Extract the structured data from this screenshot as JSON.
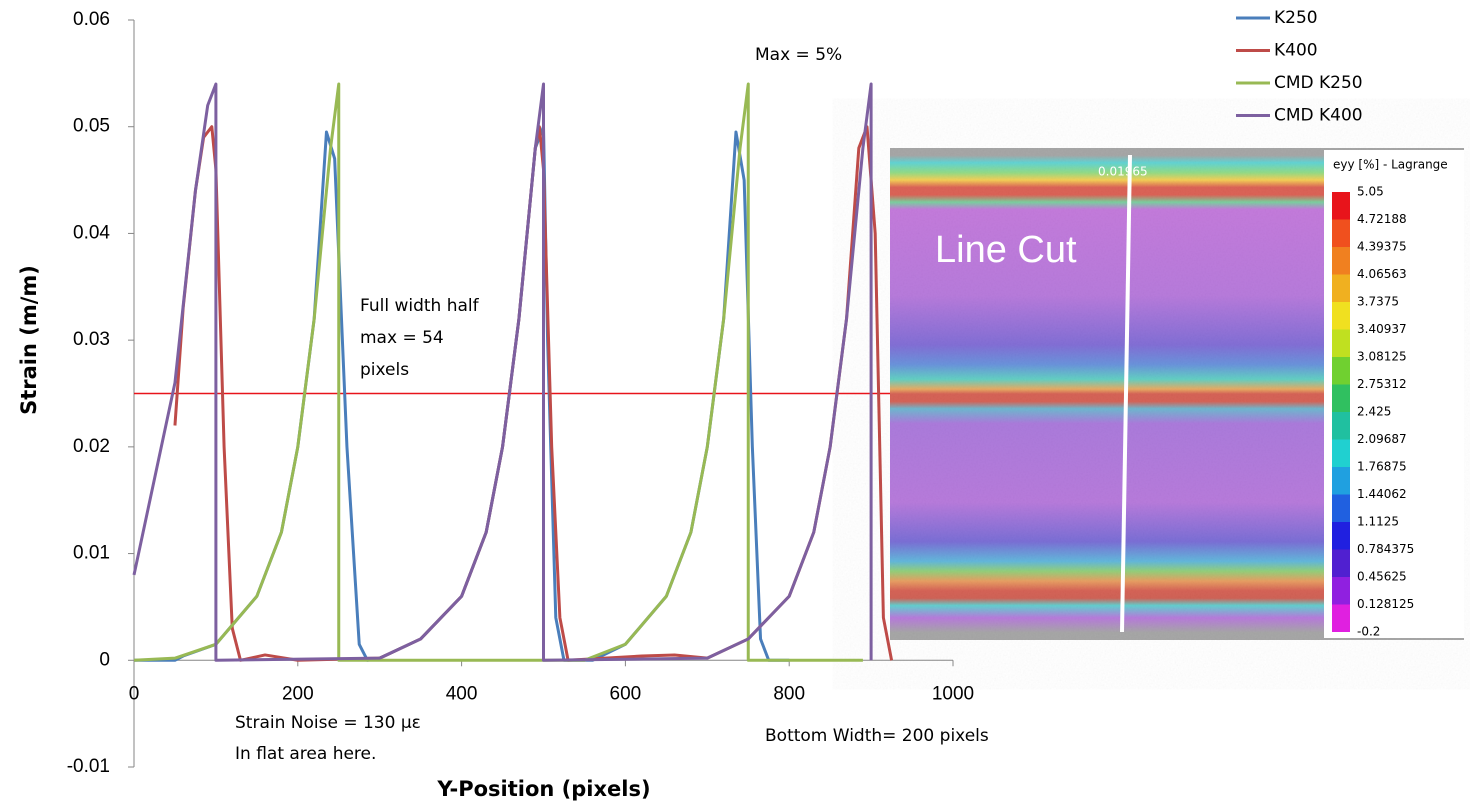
{
  "chart_data": {
    "type": "line",
    "x_label": "Y-Position (pixels)",
    "y_label": "Strain (m/m)",
    "xlim": [
      0,
      1000
    ],
    "xticks": [
      0,
      200,
      400,
      600,
      800,
      1000
    ],
    "ylim": [
      -0.01,
      0.06
    ],
    "yticks": [
      -0.01,
      0,
      0.01,
      0.02,
      0.03,
      0.04,
      0.05,
      0.06
    ],
    "reference_line": {
      "value": 0.025,
      "color": "#e8141b"
    },
    "legend": "top-right",
    "series": [
      {
        "name": "K250",
        "color": "#4a7ebb",
        "x": [
          0,
          50,
          60,
          100,
          150,
          180,
          200,
          220,
          235,
          245,
          260,
          275,
          285,
          300,
          350,
          400,
          430,
          450,
          470,
          490,
          500,
          505,
          515,
          525,
          560,
          600,
          650,
          680,
          700,
          720,
          735,
          745,
          755,
          765,
          775,
          800
        ],
        "values": [
          0,
          0,
          0.0004,
          0.0015,
          0.006,
          0.012,
          0.02,
          0.032,
          0.0495,
          0.047,
          0.02,
          0.0015,
          0,
          0.0002,
          0.002,
          0.006,
          0.012,
          0.02,
          0.032,
          0.048,
          0.05,
          0.03,
          0.004,
          0,
          0,
          0.0015,
          0.006,
          0.012,
          0.02,
          0.032,
          0.0495,
          0.045,
          0.02,
          0.002,
          0,
          0
        ]
      },
      {
        "name": "K400",
        "color": "#be4b48",
        "x": [
          50,
          60,
          75,
          85,
          95,
          100,
          110,
          120,
          130,
          160,
          200,
          300,
          350,
          400,
          430,
          450,
          470,
          490,
          495,
          500,
          510,
          520,
          530,
          620,
          660,
          700,
          750,
          800,
          830,
          850,
          870,
          885,
          895,
          905,
          915,
          925
        ],
        "values": [
          0.022,
          0.033,
          0.044,
          0.049,
          0.05,
          0.046,
          0.02,
          0.003,
          0,
          0.0005,
          0,
          0.0002,
          0.002,
          0.006,
          0.012,
          0.02,
          0.032,
          0.048,
          0.05,
          0.046,
          0.02,
          0.004,
          0,
          0.0004,
          0.0005,
          0.0002,
          0.002,
          0.006,
          0.012,
          0.02,
          0.032,
          0.048,
          0.05,
          0.04,
          0.004,
          0
        ]
      },
      {
        "name": "CMD K250",
        "color": "#98b954",
        "x": [
          0,
          50,
          100,
          150,
          180,
          200,
          220,
          240,
          250,
          250,
          550,
          600,
          650,
          680,
          700,
          720,
          740,
          750,
          750,
          890
        ],
        "values": [
          0,
          0.0002,
          0.0015,
          0.006,
          0.012,
          0.02,
          0.032,
          0.048,
          0.054,
          0,
          0,
          0.0015,
          0.006,
          0.012,
          0.02,
          0.032,
          0.048,
          0.054,
          0,
          0
        ]
      },
      {
        "name": "CMD K400",
        "color": "#7d60a0",
        "x": [
          0,
          50,
          75,
          90,
          100,
          100,
          300,
          350,
          400,
          430,
          450,
          470,
          490,
          500,
          500,
          700,
          750,
          800,
          830,
          850,
          870,
          890,
          900,
          900
        ],
        "values": [
          0.008,
          0.026,
          0.044,
          0.052,
          0.054,
          0,
          0.0002,
          0.002,
          0.006,
          0.012,
          0.02,
          0.032,
          0.048,
          0.054,
          0,
          0.0002,
          0.002,
          0.006,
          0.012,
          0.02,
          0.032,
          0.048,
          0.054,
          0
        ]
      }
    ],
    "annotations": [
      [
        "Max = 5%"
      ],
      [
        "Full width half",
        "max = 54",
        "pixels"
      ],
      [
        "Strain Noise = 130 με",
        "In flat area here."
      ],
      [
        "Bottom Width= 200 pixels"
      ]
    ]
  },
  "inset": {
    "cut_value": "0.01965",
    "line_cut_label": "Line Cut",
    "colorbar_title": "eyy [%] - Lagrange",
    "colorbar_labels": [
      "5.05",
      "4.72188",
      "4.39375",
      "4.06563",
      "3.7375",
      "3.40937",
      "3.08125",
      "2.75312",
      "2.425",
      "2.09687",
      "1.76875",
      "1.44062",
      "1.1125",
      "0.784375",
      "0.45625",
      "0.128125",
      "-0.2"
    ]
  }
}
